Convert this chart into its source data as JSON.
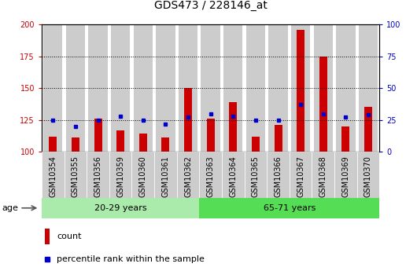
{
  "title": "GDS473 / 228146_at",
  "samples": [
    "GSM10354",
    "GSM10355",
    "GSM10356",
    "GSM10359",
    "GSM10360",
    "GSM10361",
    "GSM10362",
    "GSM10363",
    "GSM10364",
    "GSM10365",
    "GSM10366",
    "GSM10367",
    "GSM10368",
    "GSM10369",
    "GSM10370"
  ],
  "counts": [
    112,
    111,
    126,
    117,
    114,
    111,
    150,
    126,
    139,
    112,
    121,
    196,
    175,
    120,
    135
  ],
  "percentiles": [
    25,
    20,
    25,
    28,
    25,
    22,
    27,
    30,
    28,
    25,
    25,
    37,
    30,
    27,
    29
  ],
  "group1_count": 7,
  "group2_count": 8,
  "group1_label": "20-29 years",
  "group2_label": "65-71 years",
  "age_label": "age",
  "ylim_left": [
    100,
    200
  ],
  "ylim_right": [
    0,
    100
  ],
  "yticks_left": [
    100,
    125,
    150,
    175,
    200
  ],
  "yticks_right": [
    0,
    25,
    50,
    75,
    100
  ],
  "bar_color": "#cc0000",
  "dot_color": "#0000cc",
  "group1_bg": "#aaeaaa",
  "group2_bg": "#55dd55",
  "label_bg": "#cccccc",
  "legend_count_label": "count",
  "legend_pct_label": "percentile rank within the sample",
  "title_fontsize": 10,
  "tick_fontsize": 7,
  "axis_label_color_left": "#cc0000",
  "axis_label_color_right": "#0000cc"
}
